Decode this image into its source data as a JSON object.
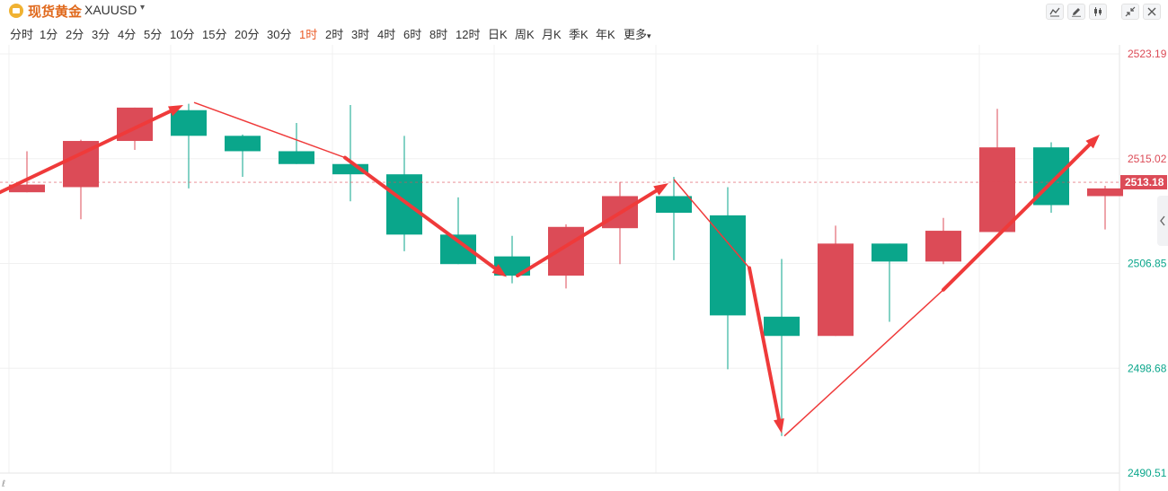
{
  "header": {
    "symbol_name": "现货黄金",
    "symbol_code": "XAUUSD",
    "caret": "▾",
    "tools": [
      "line-chart-icon",
      "pencil-icon",
      "candlestick-icon",
      "collapse-icon",
      "close-icon"
    ]
  },
  "periods": {
    "items": [
      "分时",
      "1分",
      "2分",
      "3分",
      "4分",
      "5分",
      "10分",
      "15分",
      "20分",
      "30分",
      "1时",
      "2时",
      "3时",
      "4时",
      "6时",
      "8时",
      "12时",
      "日K",
      "周K",
      "月K",
      "季K",
      "年K",
      "更多"
    ],
    "active": "1时",
    "more_caret": "▾"
  },
  "colors": {
    "up": "#dc4b57",
    "down": "#0aa68b",
    "arrow": "#ef3a3a",
    "grid": "#f0f0f0",
    "current_price_bg": "#dc4b57"
  },
  "chart_data": {
    "type": "candlestick",
    "ylim": [
      2490.51,
      2523.19
    ],
    "y_ticks": [
      "2523.19",
      "2515.02",
      "2506.85",
      "2498.68",
      "2490.51"
    ],
    "current_price": "2513.18",
    "bottom_marker": "ℓ",
    "candles": [
      {
        "open": 2512.4,
        "close": 2513.0,
        "high": 2515.6,
        "low": 2512.4
      },
      {
        "open": 2512.8,
        "close": 2516.4,
        "high": 2516.5,
        "low": 2510.3
      },
      {
        "open": 2516.4,
        "close": 2519.0,
        "high": 2519.0,
        "low": 2515.7
      },
      {
        "open": 2518.8,
        "close": 2516.8,
        "high": 2519.3,
        "low": 2512.7
      },
      {
        "open": 2516.8,
        "close": 2515.6,
        "high": 2516.9,
        "low": 2513.6
      },
      {
        "open": 2515.6,
        "close": 2514.6,
        "high": 2517.8,
        "low": 2514.6
      },
      {
        "open": 2514.6,
        "close": 2513.8,
        "high": 2519.2,
        "low": 2511.7
      },
      {
        "open": 2513.8,
        "close": 2509.1,
        "high": 2516.8,
        "low": 2507.8
      },
      {
        "open": 2509.1,
        "close": 2506.8,
        "high": 2512.0,
        "low": 2506.8
      },
      {
        "open": 2507.4,
        "close": 2505.9,
        "high": 2509.0,
        "low": 2505.3
      },
      {
        "open": 2505.9,
        "close": 2509.7,
        "high": 2509.9,
        "low": 2504.9
      },
      {
        "open": 2509.6,
        "close": 2512.1,
        "high": 2513.2,
        "low": 2506.8
      },
      {
        "open": 2512.1,
        "close": 2510.8,
        "high": 2513.6,
        "low": 2507.1
      },
      {
        "open": 2510.6,
        "close": 2502.8,
        "high": 2512.8,
        "low": 2498.6
      },
      {
        "open": 2502.7,
        "close": 2501.2,
        "high": 2507.2,
        "low": 2493.4
      },
      {
        "open": 2501.2,
        "close": 2508.4,
        "high": 2509.8,
        "low": 2501.2
      },
      {
        "open": 2508.4,
        "close": 2507.0,
        "high": 2508.4,
        "low": 2502.3
      },
      {
        "open": 2507.0,
        "close": 2509.4,
        "high": 2510.4,
        "low": 2506.8
      },
      {
        "open": 2509.3,
        "close": 2515.9,
        "high": 2518.9,
        "low": 2509.3
      },
      {
        "open": 2515.9,
        "close": 2511.4,
        "high": 2516.3,
        "low": 2510.8
      },
      {
        "open": 2512.1,
        "close": 2512.7,
        "high": 2512.9,
        "low": 2509.5
      }
    ],
    "annotations": [
      {
        "kind": "arrow",
        "from": [
          -0.8,
          2511.8
        ],
        "to": [
          2.9,
          2519.2
        ]
      },
      {
        "kind": "line",
        "from": [
          3.1,
          2519.4
        ],
        "to": [
          5.9,
          2515.1
        ]
      },
      {
        "kind": "arrow",
        "from": [
          5.9,
          2515.1
        ],
        "to": [
          8.9,
          2505.8
        ]
      },
      {
        "kind": "line",
        "from": [
          9.1,
          2505.9
        ],
        "to": [
          9.1,
          2505.9
        ]
      },
      {
        "kind": "arrow",
        "from": [
          9.1,
          2505.9
        ],
        "to": [
          11.9,
          2513.1
        ]
      },
      {
        "kind": "line",
        "from": [
          12.0,
          2513.4
        ],
        "to": [
          13.4,
          2506.5
        ]
      },
      {
        "kind": "arrow",
        "from": [
          13.4,
          2506.5
        ],
        "to": [
          14.0,
          2493.6
        ]
      },
      {
        "kind": "line",
        "from": [
          14.05,
          2493.4
        ],
        "to": [
          17.0,
          2504.8
        ]
      },
      {
        "kind": "arrow",
        "from": [
          17.0,
          2504.8
        ],
        "to": [
          19.9,
          2516.9
        ]
      }
    ]
  }
}
